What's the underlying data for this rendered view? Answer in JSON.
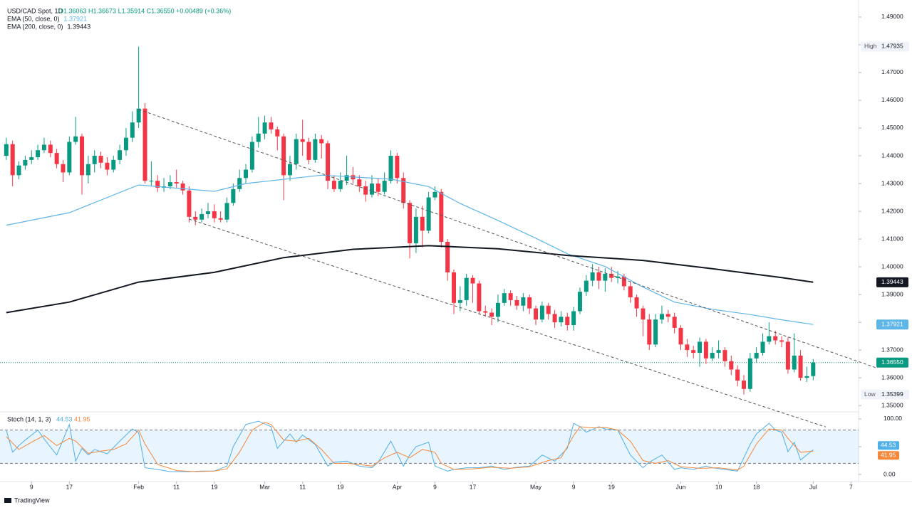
{
  "header": {
    "logo": "TradingView"
  },
  "chart_data": {
    "type": "candlestick",
    "title": "USD/CAD Spot, 1D",
    "ohlc_text": "O1.36063 H1.36673 L1.35914 C1.36550 +0.00489 (+0.36%)",
    "xlim": [
      -1,
      135.2
    ],
    "ylim": [
      1.348,
      1.49613
    ],
    "xticks": [
      {
        "value": 4,
        "label": "9"
      },
      {
        "value": 10,
        "label": "17"
      },
      {
        "value": 21,
        "label": "Feb"
      },
      {
        "value": 27,
        "label": "11"
      },
      {
        "value": 33,
        "label": "19"
      },
      {
        "value": 41,
        "label": "Mar"
      },
      {
        "value": 47,
        "label": "11"
      },
      {
        "value": 53,
        "label": "19"
      },
      {
        "value": 62,
        "label": "Apr"
      },
      {
        "value": 68,
        "label": "9"
      },
      {
        "value": 74,
        "label": "17"
      },
      {
        "value": 84,
        "label": "May"
      },
      {
        "value": 90,
        "label": "9"
      },
      {
        "value": 96,
        "label": "19"
      },
      {
        "value": 107,
        "label": "Jun"
      },
      {
        "value": 113,
        "label": "10"
      },
      {
        "value": 119,
        "label": "18"
      },
      {
        "value": 128,
        "label": "Jul"
      },
      {
        "value": 134,
        "label": "7"
      }
    ],
    "yticks": [
      {
        "value": 1.49,
        "label": "1.49000"
      },
      {
        "value": 1.48,
        "label": "1.48000"
      },
      {
        "value": 1.47,
        "label": "1.47000"
      },
      {
        "value": 1.46,
        "label": "1.46000"
      },
      {
        "value": 1.45,
        "label": "1.45000"
      },
      {
        "value": 1.44,
        "label": "1.44000"
      },
      {
        "value": 1.43,
        "label": "1.43000"
      },
      {
        "value": 1.42,
        "label": "1.42000"
      },
      {
        "value": 1.41,
        "label": "1.41000"
      },
      {
        "value": 1.4,
        "label": "1.40000"
      },
      {
        "value": 1.39,
        "label": "1.39000"
      },
      {
        "value": 1.38,
        "label": "1.38000"
      },
      {
        "value": 1.37,
        "label": "1.37000"
      },
      {
        "value": 1.36,
        "label": "1.36000"
      },
      {
        "value": 1.35,
        "label": "1.35000"
      }
    ],
    "up_color": "#089981",
    "down_color": "#f23645",
    "x": [
      0,
      1,
      2,
      3,
      4,
      5,
      6,
      7,
      8,
      9,
      10,
      11,
      12,
      13,
      14,
      15,
      16,
      17,
      18,
      19,
      20,
      21,
      22,
      23,
      24,
      25,
      26,
      27,
      28,
      29,
      30,
      31,
      32,
      33,
      34,
      35,
      36,
      37,
      38,
      39,
      40,
      41,
      42,
      43,
      44,
      45,
      46,
      47,
      48,
      49,
      50,
      51,
      52,
      53,
      54,
      55,
      56,
      57,
      58,
      59,
      60,
      61,
      62,
      63,
      64,
      65,
      66,
      67,
      68,
      69,
      70,
      71,
      72,
      73,
      74,
      75,
      76,
      77,
      78,
      79,
      80,
      81,
      82,
      83,
      84,
      85,
      86,
      87,
      88,
      89,
      90,
      91,
      92,
      93,
      94,
      95,
      96,
      97,
      98,
      99,
      100,
      101,
      102,
      103,
      104,
      105,
      106,
      107,
      108,
      109,
      110,
      111,
      112,
      113,
      114,
      115,
      116,
      117,
      118,
      119,
      120,
      121,
      122,
      123,
      124,
      125,
      126,
      127,
      128
    ],
    "open": [
      1.44,
      1.4442,
      1.433,
      1.4365,
      1.4385,
      1.4395,
      1.442,
      1.444,
      1.441,
      1.437,
      1.434,
      1.445,
      1.447,
      1.433,
      1.437,
      1.44,
      1.4375,
      1.435,
      1.4385,
      1.442,
      1.4465,
      1.452,
      1.457,
      1.431,
      1.431,
      1.4285,
      1.429,
      1.4305,
      1.43,
      1.4275,
      1.418,
      1.417,
      1.419,
      1.42,
      1.4175,
      1.417,
      1.423,
      1.428,
      1.432,
      1.435,
      1.445,
      1.448,
      1.452,
      1.4495,
      1.447,
      1.433,
      1.437,
      1.446,
      1.445,
      1.4385,
      1.446,
      1.4445,
      1.431,
      1.428,
      1.431,
      1.433,
      1.4315,
      1.429,
      1.426,
      1.43,
      1.427,
      1.431,
      1.44,
      1.432,
      1.423,
      1.4085,
      1.418,
      1.413,
      1.425,
      1.427,
      1.409,
      1.398,
      1.387,
      1.388,
      1.396,
      1.394,
      1.384,
      1.3835,
      1.382,
      1.387,
      1.3905,
      1.388,
      1.386,
      1.389,
      1.385,
      1.381,
      1.386,
      1.383,
      1.38,
      1.382,
      1.379,
      1.384,
      1.391,
      1.395,
      1.398,
      1.395,
      1.3975,
      1.396,
      1.3965,
      1.393,
      1.389,
      1.385,
      1.381,
      1.372,
      1.381,
      1.383,
      1.382,
      1.378,
      1.372,
      1.37,
      1.369,
      1.373,
      1.367,
      1.369,
      1.37,
      1.366,
      1.363,
      1.359,
      1.356,
      1.367,
      1.369,
      1.373,
      1.375,
      1.3735,
      1.373,
      1.363,
      1.368,
      1.36,
      1.36063
    ],
    "high": [
      1.4465,
      1.4455,
      1.438,
      1.44,
      1.442,
      1.444,
      1.4465,
      1.4455,
      1.4425,
      1.4385,
      1.447,
      1.454,
      1.448,
      1.44,
      1.442,
      1.4415,
      1.4395,
      1.44,
      1.444,
      1.45,
      1.456,
      1.47935,
      1.459,
      1.438,
      1.433,
      1.432,
      1.433,
      1.435,
      1.431,
      1.429,
      1.42,
      1.421,
      1.423,
      1.4225,
      1.42,
      1.425,
      1.43,
      1.435,
      1.437,
      1.447,
      1.454,
      1.4545,
      1.454,
      1.4505,
      1.448,
      1.44,
      1.448,
      1.453,
      1.4465,
      1.448,
      1.4475,
      1.4455,
      1.433,
      1.434,
      1.44,
      1.436,
      1.433,
      1.431,
      1.433,
      1.432,
      1.434,
      1.442,
      1.441,
      1.434,
      1.424,
      1.421,
      1.422,
      1.427,
      1.429,
      1.428,
      1.41,
      1.399,
      1.393,
      1.3975,
      1.397,
      1.395,
      1.386,
      1.385,
      1.39,
      1.392,
      1.3915,
      1.3895,
      1.3905,
      1.39,
      1.386,
      1.3875,
      1.387,
      1.3845,
      1.384,
      1.3835,
      1.3855,
      1.3925,
      1.397,
      1.401,
      1.4,
      1.3995,
      1.4,
      1.3985,
      1.3975,
      1.3945,
      1.39,
      1.386,
      1.383,
      1.383,
      1.386,
      1.3845,
      1.3835,
      1.379,
      1.374,
      1.3715,
      1.3745,
      1.374,
      1.371,
      1.3735,
      1.371,
      1.368,
      1.3645,
      1.361,
      1.369,
      1.371,
      1.376,
      1.38,
      1.377,
      1.375,
      1.3745,
      1.376,
      1.37,
      1.364,
      1.36673
    ],
    "low": [
      1.4385,
      1.429,
      1.4315,
      1.435,
      1.437,
      1.4385,
      1.441,
      1.4395,
      1.4355,
      1.4305,
      1.433,
      1.444,
      1.426,
      1.43,
      1.434,
      1.4355,
      1.433,
      1.434,
      1.437,
      1.44,
      1.445,
      1.45,
      1.43,
      1.429,
      1.427,
      1.427,
      1.428,
      1.4285,
      1.426,
      1.416,
      1.415,
      1.416,
      1.4175,
      1.416,
      1.416,
      1.416,
      1.422,
      1.427,
      1.43,
      1.434,
      1.443,
      1.446,
      1.448,
      1.442,
      1.424,
      1.431,
      1.435,
      1.44,
      1.437,
      1.4375,
      1.439,
      1.428,
      1.427,
      1.427,
      1.4295,
      1.43,
      1.427,
      1.4235,
      1.425,
      1.4255,
      1.426,
      1.43,
      1.43,
      1.421,
      1.403,
      1.405,
      1.407,
      1.412,
      1.424,
      1.407,
      1.395,
      1.383,
      1.384,
      1.386,
      1.387,
      1.383,
      1.382,
      1.379,
      1.38,
      1.386,
      1.386,
      1.3845,
      1.384,
      1.383,
      1.379,
      1.38,
      1.381,
      1.378,
      1.3785,
      1.377,
      1.377,
      1.383,
      1.3895,
      1.393,
      1.392,
      1.391,
      1.3945,
      1.394,
      1.3915,
      1.387,
      1.382,
      1.375,
      1.37,
      1.371,
      1.3795,
      1.38,
      1.376,
      1.37,
      1.3675,
      1.367,
      1.364,
      1.365,
      1.366,
      1.367,
      1.364,
      1.361,
      1.357,
      1.35399,
      1.355,
      1.3655,
      1.368,
      1.372,
      1.372,
      1.371,
      1.3615,
      1.362,
      1.359,
      1.3585,
      1.35914
    ],
    "close": [
      1.4442,
      1.433,
      1.4365,
      1.4385,
      1.4395,
      1.442,
      1.444,
      1.441,
      1.437,
      1.434,
      1.445,
      1.447,
      1.433,
      1.437,
      1.44,
      1.4375,
      1.435,
      1.4385,
      1.442,
      1.4465,
      1.452,
      1.457,
      1.431,
      1.431,
      1.4285,
      1.429,
      1.4305,
      1.43,
      1.4275,
      1.418,
      1.417,
      1.419,
      1.42,
      1.4175,
      1.417,
      1.423,
      1.428,
      1.432,
      1.435,
      1.445,
      1.448,
      1.452,
      1.4495,
      1.447,
      1.433,
      1.437,
      1.446,
      1.445,
      1.4385,
      1.446,
      1.4445,
      1.431,
      1.428,
      1.431,
      1.433,
      1.4315,
      1.429,
      1.426,
      1.43,
      1.427,
      1.431,
      1.44,
      1.432,
      1.423,
      1.4085,
      1.418,
      1.413,
      1.425,
      1.427,
      1.409,
      1.398,
      1.387,
      1.388,
      1.396,
      1.394,
      1.384,
      1.3835,
      1.382,
      1.387,
      1.3905,
      1.388,
      1.386,
      1.389,
      1.385,
      1.381,
      1.386,
      1.383,
      1.38,
      1.382,
      1.379,
      1.384,
      1.391,
      1.395,
      1.398,
      1.395,
      1.3975,
      1.396,
      1.3965,
      1.393,
      1.389,
      1.385,
      1.381,
      1.372,
      1.381,
      1.383,
      1.382,
      1.378,
      1.372,
      1.37,
      1.369,
      1.373,
      1.367,
      1.369,
      1.37,
      1.366,
      1.363,
      1.359,
      1.356,
      1.367,
      1.369,
      1.373,
      1.375,
      1.3735,
      1.373,
      1.363,
      1.368,
      1.36,
      1.3606,
      1.3655
    ],
    "last_price": {
      "value": 1.3655,
      "label": "1.36550",
      "color": "#089981"
    },
    "high_tag": {
      "name": "High",
      "value": 1.47935
    },
    "low_tag": {
      "name": "Low",
      "value": 1.35399
    },
    "lines": [
      {
        "name": "EMA (50, close, 0)",
        "color": "#5eb5e8",
        "last": 1.37921,
        "x": [
          0,
          10,
          21,
          33,
          38,
          50,
          61,
          67,
          72,
          78,
          84,
          89,
          95,
          101,
          106,
          112,
          118,
          123,
          128
        ],
        "values": [
          1.415,
          1.4195,
          1.4295,
          1.4272,
          1.43,
          1.433,
          1.4316,
          1.4289,
          1.4228,
          1.4167,
          1.4103,
          1.4047,
          1.4001,
          1.3927,
          1.3873,
          1.3847,
          1.3828,
          1.3809,
          1.37921
        ]
      },
      {
        "name": "EMA (200, close, 0)",
        "color": "#131722",
        "last": 1.39443,
        "x": [
          0,
          10,
          21,
          33,
          44,
          55,
          67,
          78,
          89,
          101,
          112,
          123,
          128
        ],
        "values": [
          1.3835,
          1.3873,
          1.3945,
          1.398,
          1.4033,
          1.4063,
          1.4076,
          1.4065,
          1.4041,
          1.4023,
          1.3993,
          1.3961,
          1.39443
        ]
      }
    ],
    "trendlines": [
      {
        "x": [
          21,
          138
        ],
        "values": [
          1.4567,
          1.3636
        ]
      },
      {
        "x": [
          29,
          130
        ],
        "values": [
          1.4172,
          1.3423
        ]
      }
    ],
    "stoch": {
      "name": "Stoch (14, 1, 3)",
      "ylim": [
        -12.8,
        111.5
      ],
      "yticks": [
        {
          "value": 100,
          "label": "100.00"
        },
        {
          "value": 50,
          "label": "50.00"
        },
        {
          "value": 0,
          "label": "0.00"
        }
      ],
      "bands": [
        80,
        20
      ],
      "series": [
        {
          "color": "#4fb0e8",
          "last": 44.53,
          "x": [
            0,
            1,
            2,
            3,
            5,
            6,
            8,
            10,
            11,
            12,
            13,
            14,
            16,
            18,
            20,
            21,
            22,
            24,
            26,
            29,
            31,
            33,
            35,
            36,
            38,
            40,
            42,
            43,
            45,
            46,
            47,
            49,
            51,
            52,
            54,
            56,
            58,
            59,
            61,
            63,
            64,
            65,
            67,
            68,
            70,
            71,
            73,
            75,
            77,
            79,
            81,
            83,
            85,
            87,
            89,
            90,
            91,
            92,
            94,
            95,
            97,
            99,
            101,
            102,
            104,
            106,
            107,
            109,
            111,
            112,
            114,
            116,
            118,
            119,
            121,
            122,
            123,
            124,
            125,
            126,
            128
          ],
          "values": [
            80,
            40,
            52,
            62,
            80,
            64,
            35,
            90,
            24,
            47,
            35,
            45,
            37,
            60,
            82,
            75,
            12,
            9,
            5,
            5,
            6,
            6,
            15,
            50,
            90,
            96,
            86,
            47,
            73,
            58,
            71,
            54,
            15,
            22,
            24,
            15,
            12,
            22,
            60,
            15,
            35,
            50,
            58,
            15,
            6,
            9,
            12,
            12,
            15,
            9,
            13,
            15,
            35,
            24,
            47,
            92,
            86,
            76,
            86,
            82,
            80,
            35,
            12,
            22,
            35,
            9,
            12,
            9,
            15,
            12,
            9,
            6,
            54,
            73,
            92,
            80,
            76,
            41,
            58,
            26,
            44.53
          ]
        },
        {
          "color": "#f5883a",
          "last": 41.95,
          "x": [
            0,
            2,
            4,
            6,
            8,
            10,
            11,
            13,
            15,
            17,
            19,
            21,
            22,
            24,
            27,
            30,
            33,
            35,
            37,
            39,
            41,
            42,
            44,
            46,
            48,
            50,
            52,
            54,
            56,
            58,
            60,
            62,
            64,
            66,
            68,
            69,
            71,
            74,
            77,
            80,
            83,
            86,
            88,
            90,
            91,
            93,
            95,
            97,
            99,
            101,
            103,
            105,
            107,
            110,
            113,
            116,
            117,
            119,
            121,
            123,
            124,
            126,
            128
          ],
          "values": [
            68,
            45,
            58,
            70,
            52,
            65,
            60,
            38,
            42,
            45,
            55,
            80,
            55,
            18,
            7,
            5,
            6,
            10,
            40,
            80,
            94,
            90,
            62,
            60,
            65,
            45,
            20,
            20,
            18,
            15,
            30,
            40,
            30,
            45,
            40,
            20,
            9,
            10,
            13,
            11,
            14,
            25,
            30,
            70,
            86,
            84,
            85,
            80,
            60,
            25,
            20,
            25,
            14,
            11,
            12,
            8,
            15,
            55,
            82,
            80,
            65,
            40,
            41.95
          ]
        }
      ]
    }
  }
}
